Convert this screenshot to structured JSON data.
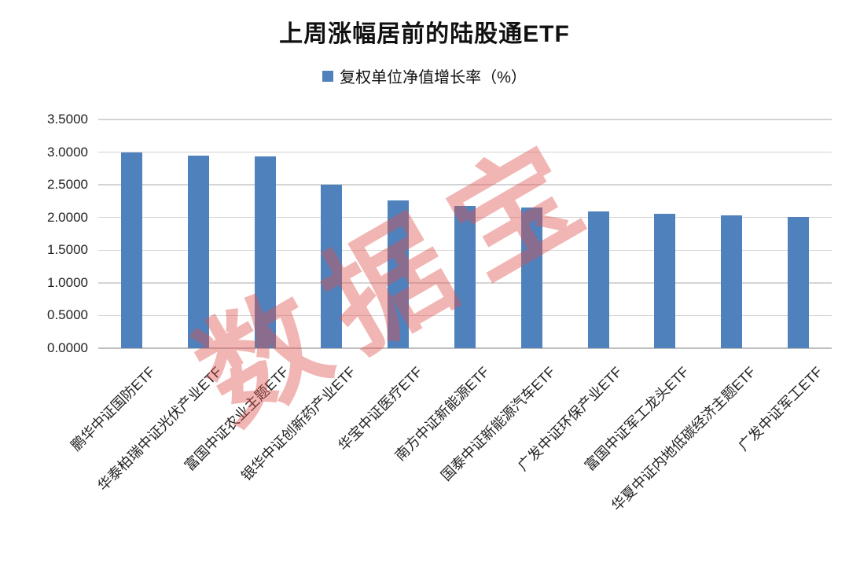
{
  "title": "上周涨幅居前的陆股通ETF",
  "legend": {
    "label": "复权单位净值增长率（%）",
    "swatch_color": "#4F81BD"
  },
  "watermark": {
    "text": "数据宝",
    "color_rgba": "rgba(221,82,76,0.42)"
  },
  "chart_data": {
    "type": "bar",
    "title": "上周涨幅居前的陆股通ETF",
    "series_name": "复权单位净值增长率（%）",
    "categories": [
      "鹏华中证国防ETF",
      "华泰柏瑞中证光伏产业ETF",
      "富国中证农业主题ETF",
      "银华中证创新药产业ETF",
      "华宝中证医疗ETF",
      "南方中证新能源ETF",
      "国泰中证新能源汽车ETF",
      "广发中证环保产业ETF",
      "富国中证军工龙头ETF",
      "华夏中证内地低碳经济主题ETF",
      "广发中证军工ETF"
    ],
    "values": [
      3.0,
      2.95,
      2.93,
      2.5,
      2.26,
      2.18,
      2.15,
      2.09,
      2.06,
      2.03,
      2.01
    ],
    "xlabel": "",
    "ylabel": "",
    "ylim": [
      0,
      3.5
    ],
    "ytick_step": 0.5,
    "ytick_decimals": 4,
    "grid": true,
    "legend_position": "top",
    "bar_color": "#4F81BD",
    "x_labels_rotation_deg": -45
  }
}
